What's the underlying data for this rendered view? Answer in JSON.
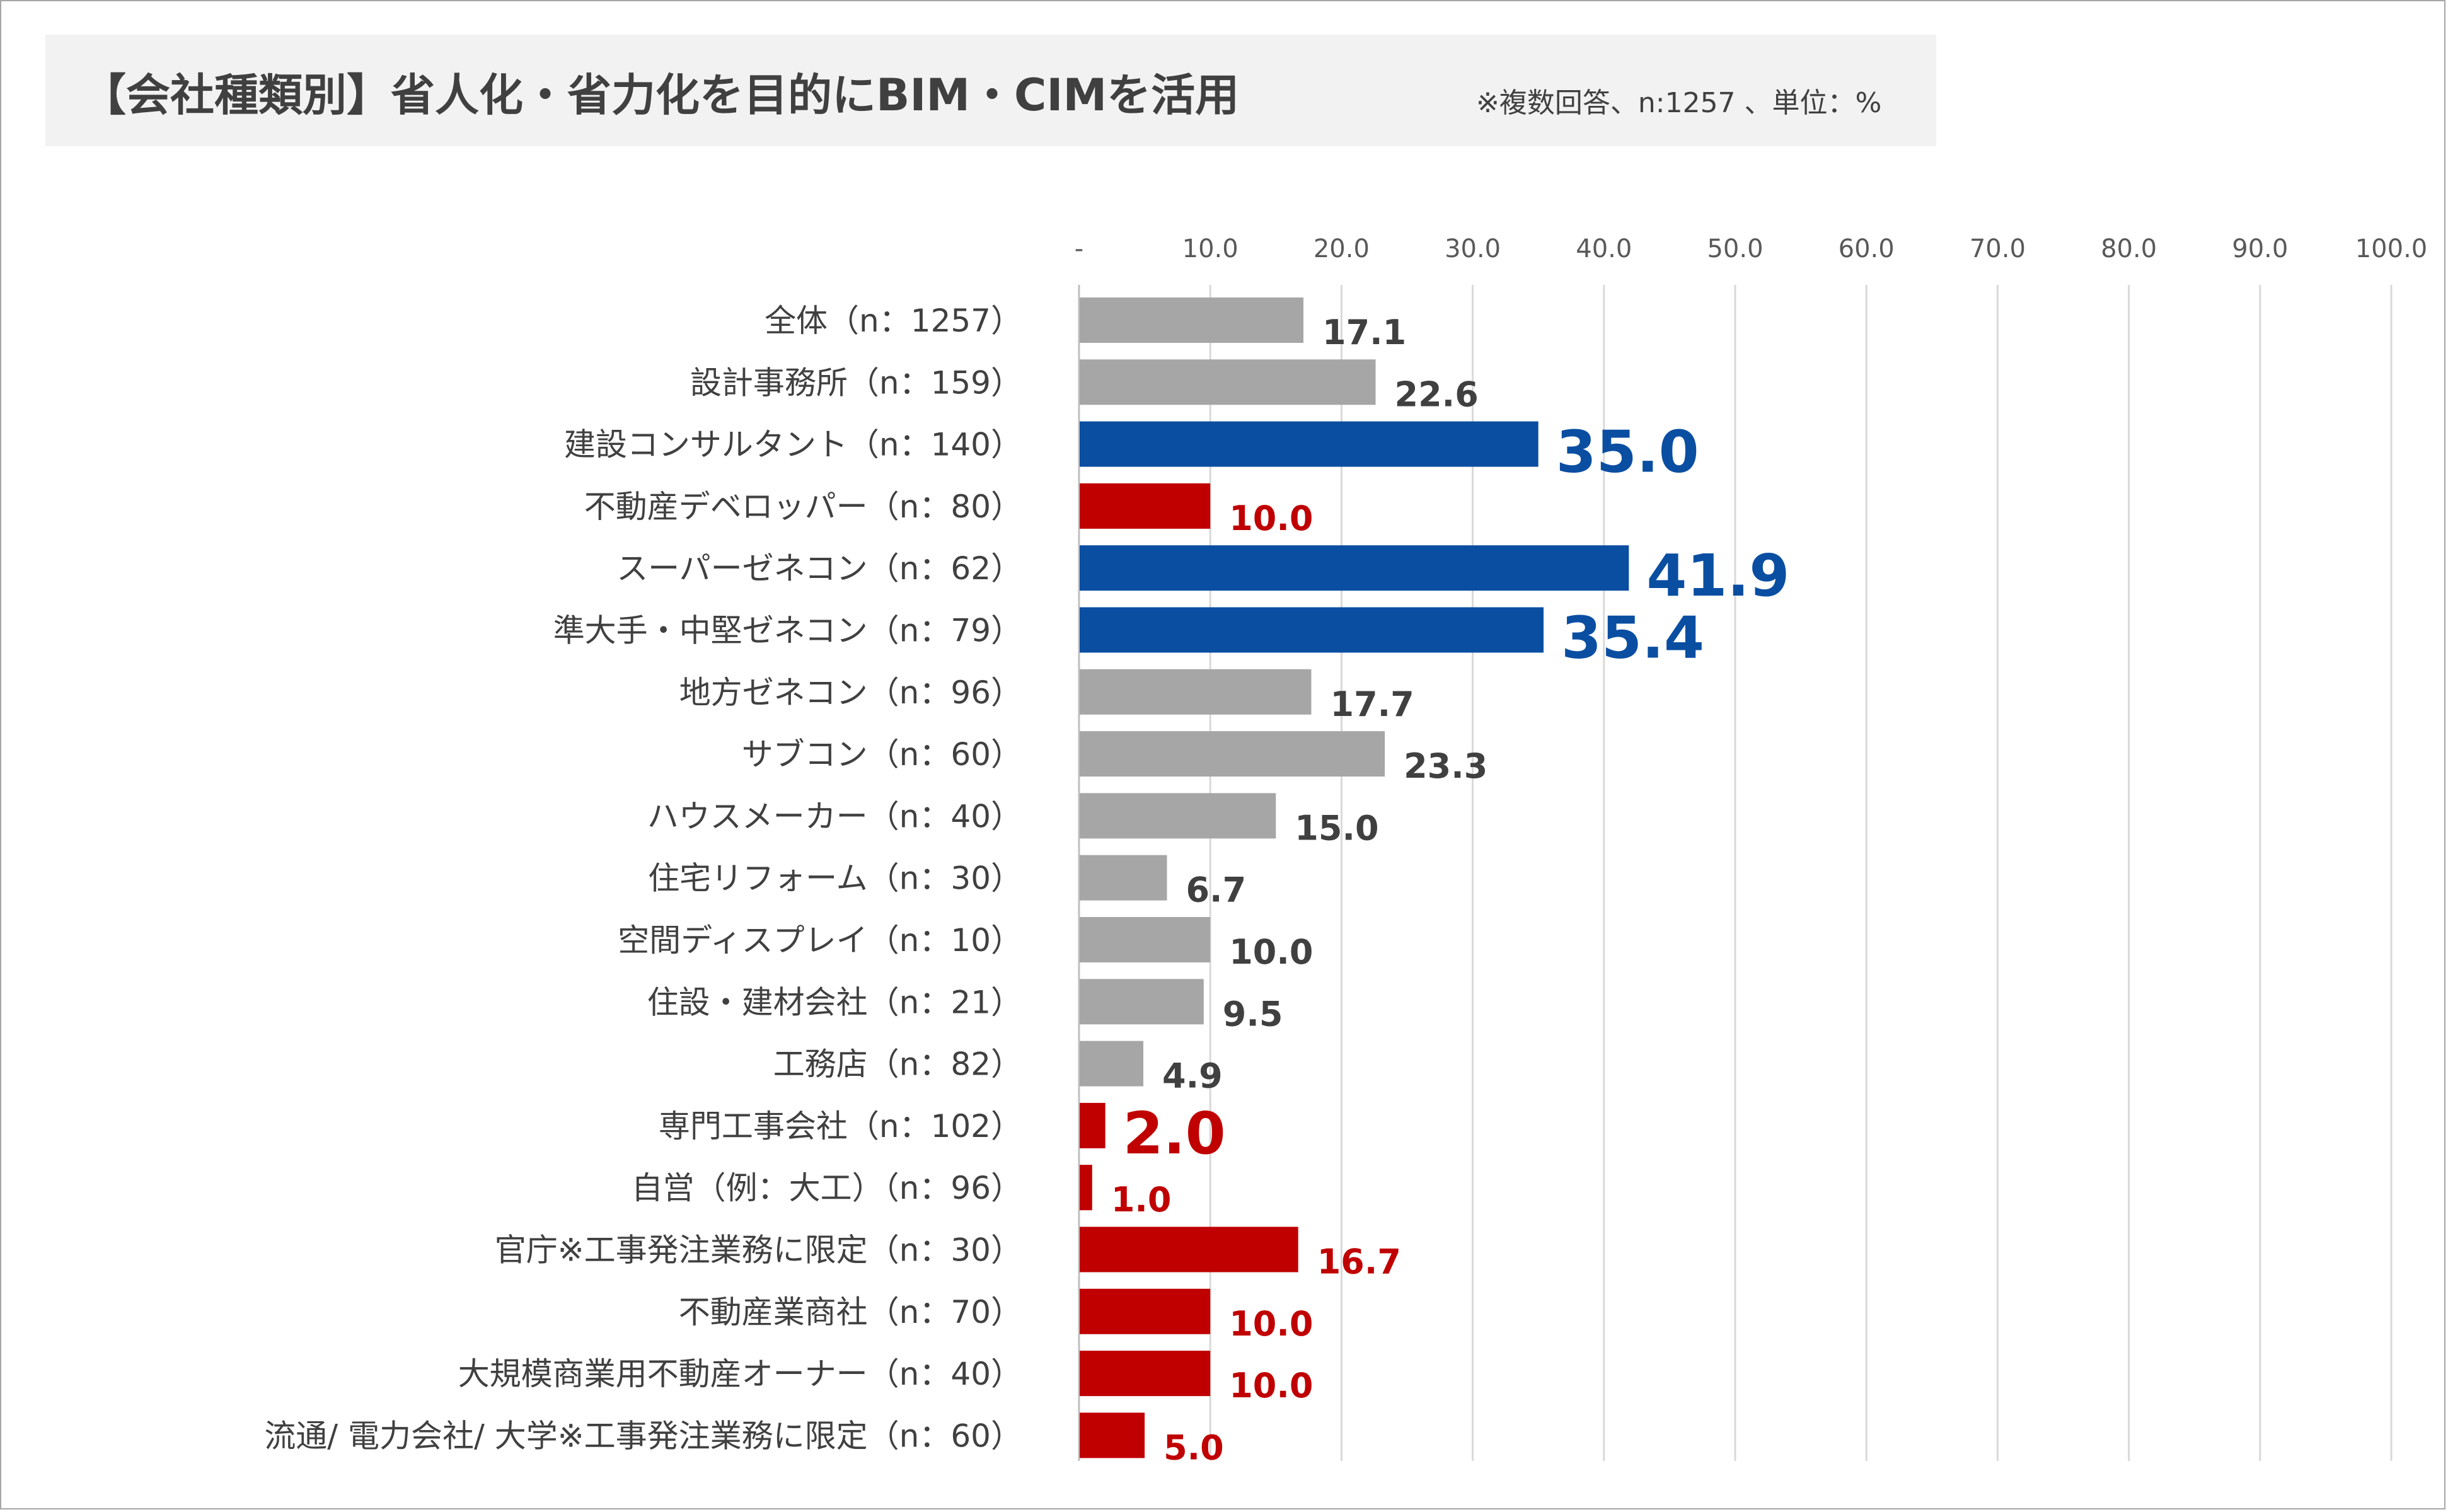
{
  "title": "【会社種類別】省人化・省力化を目的にBIM・CIMを活用",
  "subtitle": "※複数回答、n:1257 、単位：%",
  "colors": {
    "neutral": "#a6a6a6",
    "highlight_blue": "#0a4ea2",
    "highlight_red": "#c00000",
    "label_dark": "#404040",
    "grid": "#d9d9d9"
  },
  "chart_data": {
    "type": "bar",
    "orientation": "horizontal",
    "xlim": [
      0,
      100
    ],
    "x_ticks": [
      "-",
      "10.0",
      "20.0",
      "30.0",
      "40.0",
      "50.0",
      "60.0",
      "70.0",
      "80.0",
      "90.0",
      "100.0"
    ],
    "x_tick_values": [
      0,
      10,
      20,
      30,
      40,
      50,
      60,
      70,
      80,
      90,
      100
    ],
    "grid": true,
    "categories": [
      "全体（n：1257）",
      "設計事務所（n：159）",
      "建設コンサルタント（n：140）",
      "不動産デベロッパー（n：80）",
      "スーパーゼネコン（n：62）",
      "準大手・中堅ゼネコン（n：79）",
      "地方ゼネコン（n：96）",
      "サブコン（n：60）",
      "ハウスメーカー（n：40）",
      "住宅リフォーム（n：30）",
      "空間ディスプレイ（n：10）",
      "住設・建材会社（n：21）",
      "工務店（n：82）",
      "専門工事会社（n：102）",
      "自営（例：大工）（n：96）",
      "官庁※工事発注業務に限定（n：30）",
      "不動産業商社（n：70）",
      "大規模商業用不動産オーナー（n：40）",
      "流通/ 電力会社/ 大学※工事発注業務に限定（n：60）"
    ],
    "values": [
      17.1,
      22.6,
      35.0,
      10.0,
      41.9,
      35.4,
      17.7,
      23.3,
      15.0,
      6.7,
      10.0,
      9.5,
      4.9,
      2.0,
      1.0,
      16.7,
      10.0,
      10.0,
      5.0
    ],
    "value_labels": [
      "17.1",
      "22.6",
      "35.0",
      "10.0",
      "41.9",
      "35.4",
      "17.7",
      "23.3",
      "15.0",
      "6.7",
      "10.0",
      "9.5",
      "4.9",
      "2.0",
      "1.0",
      "16.7",
      "10.0",
      "10.0",
      "5.0"
    ],
    "highlight": [
      "none",
      "none",
      "blue",
      "red",
      "blue",
      "blue",
      "none",
      "none",
      "none",
      "none",
      "none",
      "none",
      "none",
      "red",
      "red",
      "red",
      "red",
      "red",
      "red"
    ],
    "label_emphasis": [
      "normal",
      "normal",
      "large",
      "normal",
      "large",
      "large",
      "normal",
      "normal",
      "normal",
      "normal",
      "normal",
      "normal",
      "normal",
      "large",
      "normal",
      "normal",
      "normal",
      "normal",
      "normal"
    ]
  }
}
